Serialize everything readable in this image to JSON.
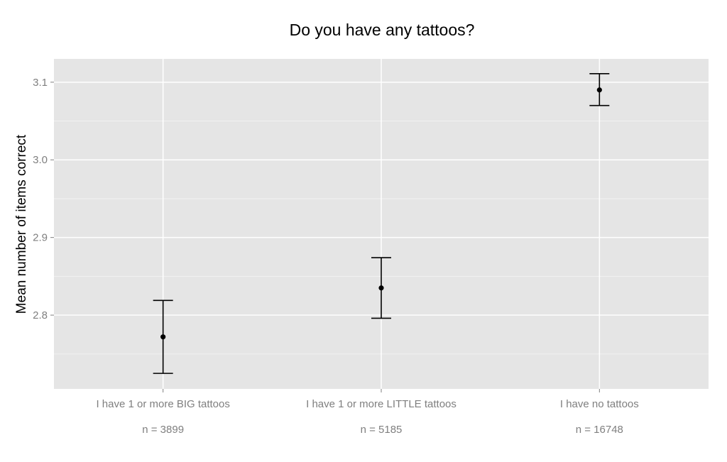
{
  "chart_data": {
    "type": "errorbar",
    "title": "Do you have any tattoos?",
    "xlabel": "",
    "ylabel": "Mean number of items correct",
    "categories": [
      "I have 1 or more BIG tattoos",
      "I have 1 or more LITTLE tattoos",
      "I have no tattoos"
    ],
    "sample_sizes": [
      "n = 3899",
      "n = 5185",
      "n = 16748"
    ],
    "means": [
      2.772,
      2.835,
      3.09
    ],
    "lower": [
      2.725,
      2.796,
      3.07
    ],
    "upper": [
      2.819,
      2.874,
      3.111
    ],
    "yticks": [
      "2.8",
      "2.9",
      "3.0",
      "3.1"
    ],
    "ylim": [
      2.705,
      3.13
    ],
    "grid": true,
    "colors": {
      "panel": "#e5e5e5",
      "grid": "#ffffff",
      "minor_grid": "#f2f2f2",
      "marks": "#000000",
      "tick_text": "#7f7f7f"
    }
  }
}
